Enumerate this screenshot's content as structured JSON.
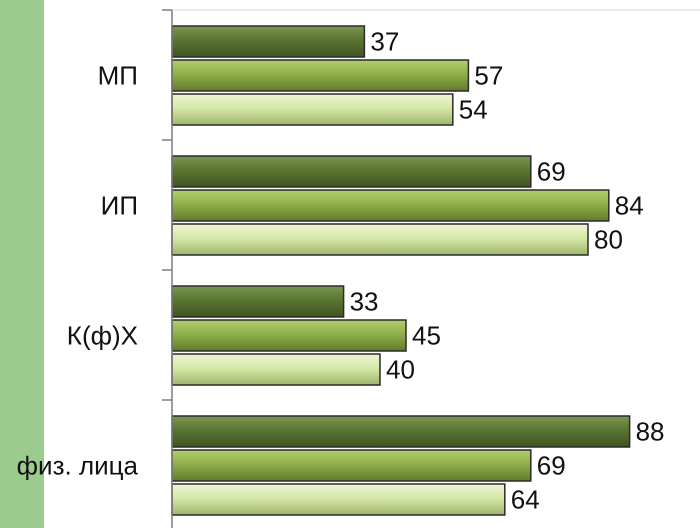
{
  "colors": {
    "stripe": "#9ccb8f",
    "series": [
      "#5b7533",
      "#8fb04a",
      "#d6e8a8"
    ],
    "series_light": [
      "#7a9650",
      "#b2cf6c",
      "#eef6d6"
    ],
    "series_dark": [
      "#3f5422",
      "#627a2c",
      "#9fb66c"
    ],
    "bar_border": "#2b2b2b",
    "axis": "#7f7f7f",
    "gridline": "#d9d9d9"
  },
  "chart_data": {
    "type": "bar",
    "orientation": "horizontal",
    "categories": [
      "МП",
      "ИП",
      "К(ф)Х",
      "физ. лица"
    ],
    "series": [
      {
        "values": [
          37,
          69,
          33,
          88
        ]
      },
      {
        "values": [
          57,
          84,
          45,
          69
        ]
      },
      {
        "values": [
          54,
          80,
          40,
          64
        ]
      }
    ],
    "title": "",
    "xlabel": "",
    "ylabel": "",
    "xlim": [
      0,
      100
    ],
    "grid": false,
    "legend": "none"
  }
}
